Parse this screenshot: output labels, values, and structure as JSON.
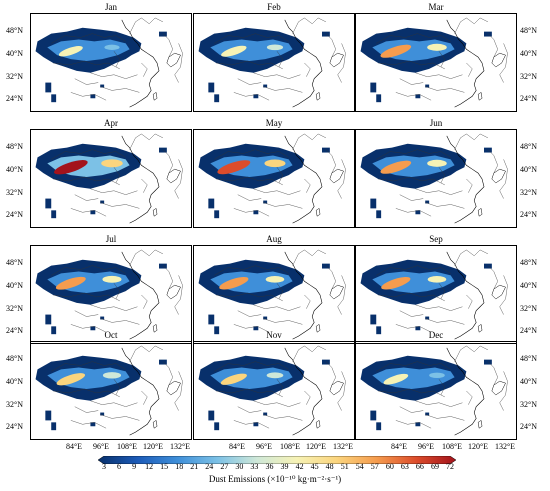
{
  "months": [
    "Jan",
    "Feb",
    "Mar",
    "Apr",
    "May",
    "Jun",
    "Jul",
    "Aug",
    "Sep",
    "Oct",
    "Nov",
    "Dec"
  ],
  "intensity": [
    0.35,
    0.45,
    0.8,
    1.0,
    0.95,
    0.8,
    0.75,
    0.7,
    0.7,
    0.65,
    0.5,
    0.4
  ],
  "lat_labels": [
    "48°N",
    "40°N",
    "32°N",
    "24°N"
  ],
  "lon_labels": [
    "84°E",
    "96°E",
    "108°E",
    "120°E",
    "132°E"
  ],
  "colorbar": {
    "ticks": [
      "3",
      "6",
      "9",
      "12",
      "15",
      "18",
      "21",
      "24",
      "27",
      "30",
      "33",
      "36",
      "39",
      "42",
      "45",
      "48",
      "51",
      "54",
      "57",
      "60",
      "63",
      "66",
      "69",
      "72"
    ],
    "label": "Dust Emissions (×10⁻¹⁰ kg·m⁻²·s⁻¹)",
    "colors": [
      "#08306b",
      "#1c5bb8",
      "#3f8fd9",
      "#7cc1e6",
      "#cfe8d8",
      "#f6f2b5",
      "#fbd57e",
      "#f59c4e",
      "#dc4c2b",
      "#a3131c"
    ]
  }
}
